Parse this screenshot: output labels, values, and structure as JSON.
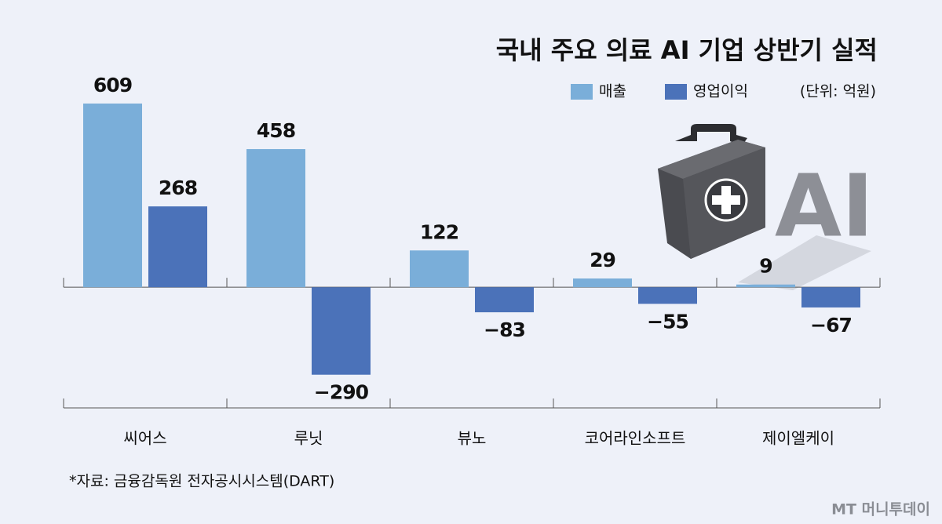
{
  "chart_data": {
    "type": "bar",
    "title": "국내 주요 의료 AI 기업 상반기 실적",
    "unit_note": "(단위: 억원)",
    "categories": [
      "씨어스",
      "루닛",
      "뷰노",
      "코어라인소프트",
      "제이엘케이"
    ],
    "series": [
      {
        "name": "매출",
        "color": "#7aaed9",
        "values": [
          609,
          458,
          122,
          29,
          9
        ]
      },
      {
        "name": "영업이익",
        "color": "#4b72b9",
        "values": [
          268,
          -290,
          -83,
          -55,
          -67
        ],
        "value_labels": [
          "268",
          "−290",
          "−83",
          "−55",
          "−67"
        ]
      }
    ],
    "ylim": [
      -400,
      700
    ],
    "illustration_text": "AI",
    "source": "*자료: 금융감독원 전자공시시스템(DART)",
    "watermark": "MT 머니투데이"
  }
}
